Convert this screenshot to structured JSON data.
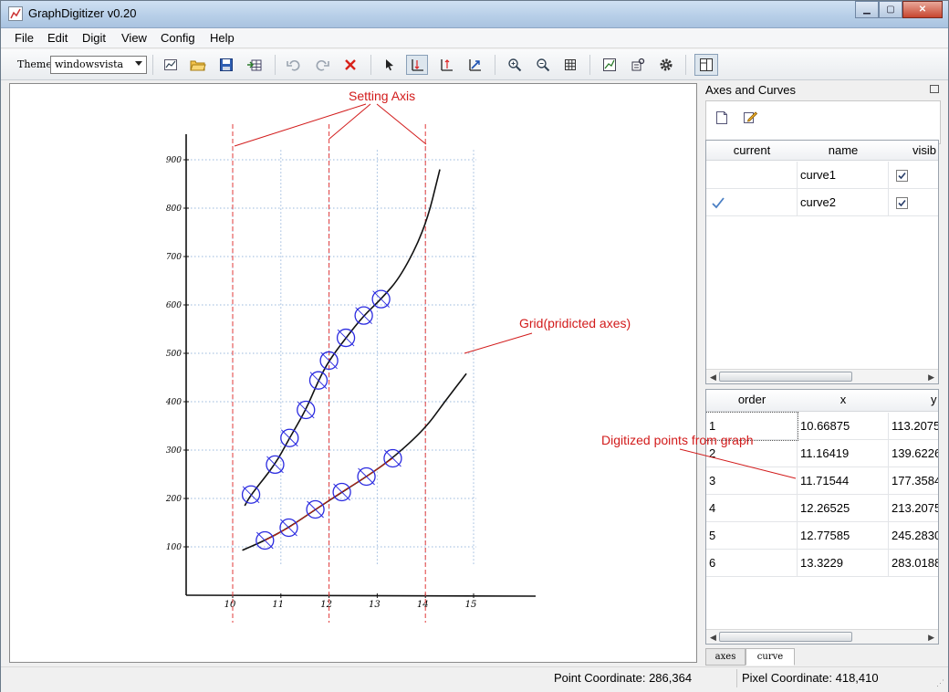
{
  "window": {
    "title": "GraphDigitizer v0.20",
    "minimize_icon": "minimize-icon",
    "maximize_icon": "maximize-icon",
    "close_icon": "close-icon"
  },
  "menu": {
    "items": [
      "File",
      "Edit",
      "Digit",
      "View",
      "Config",
      "Help"
    ]
  },
  "toolbar": {
    "theme_label": "Theme",
    "theme_value": "windowsvista",
    "icons": [
      "new-graph-icon",
      "open-folder-icon",
      "save-disk-icon",
      "export-table-icon",
      "undo-icon",
      "redo-icon",
      "delete-icon",
      "select-pointer-icon",
      "set-x-axis-icon",
      "set-y-axis-icon",
      "set-axes-icon",
      "zoom-in-icon",
      "zoom-out-icon",
      "grid-icon",
      "fit-graph-icon",
      "properties-icon",
      "settings-gear-icon",
      "dock-layout-icon"
    ],
    "active": [
      "set-x-axis-icon",
      "dock-layout-icon"
    ]
  },
  "plot": {
    "x_ticks": [
      "10",
      "11",
      "12",
      "13",
      "14",
      "15"
    ],
    "y_ticks": [
      "100",
      "200",
      "300",
      "400",
      "500",
      "600",
      "700",
      "800",
      "900"
    ],
    "annotations": {
      "setting_axis": "Setting Axis",
      "grid": "Grid(pridicted axes)",
      "digitized": "Digitized points from graph"
    }
  },
  "chart_data": {
    "type": "scatter",
    "xlim": [
      9,
      16
    ],
    "ylim": [
      0,
      950
    ],
    "grid": true,
    "series": [
      {
        "values": [
          [
            10.38,
            208
          ],
          [
            10.88,
            270
          ],
          [
            11.18,
            325
          ],
          [
            11.52,
            383
          ],
          [
            11.78,
            444
          ],
          [
            12.0,
            485
          ],
          [
            12.35,
            532
          ],
          [
            12.72,
            578
          ],
          [
            13.08,
            612
          ]
        ]
      },
      {
        "values": [
          [
            10.66875,
            113.2075
          ],
          [
            11.16419,
            139.6226
          ],
          [
            11.71544,
            177.3584
          ],
          [
            12.26525,
            213.2075
          ],
          [
            12.77585,
            245.283
          ],
          [
            13.3229,
            283.0188
          ]
        ]
      }
    ]
  },
  "dock": {
    "title": "Axes and Curves",
    "panel_icons": [
      "new-curve-icon",
      "edit-curve-icon"
    ],
    "curves_table": {
      "headers": [
        "current",
        "name",
        "visib"
      ],
      "rows": [
        {
          "current": "",
          "name": "curve1",
          "visible": true
        },
        {
          "current": "check",
          "name": "curve2",
          "visible": true
        }
      ]
    },
    "points_table": {
      "headers": [
        "order",
        "x",
        "y"
      ],
      "rows": [
        [
          "1",
          "10.66875",
          "113.2075"
        ],
        [
          "2",
          "11.16419",
          "139.6226"
        ],
        [
          "3",
          "11.71544",
          "177.3584"
        ],
        [
          "4",
          "12.26525",
          "213.2075"
        ],
        [
          "5",
          "12.77585",
          "245.2830"
        ],
        [
          "6",
          "13.3229",
          "283.0188"
        ]
      ]
    },
    "tabs": [
      "axes",
      "curve"
    ],
    "active_tab": "curve"
  },
  "status": {
    "point_coordinate": "Point Coordinate: 286,364",
    "pixel_coordinate": "Pixel Coordinate: 418,410"
  },
  "colors": {
    "annotation": "#d21b1b",
    "marker": "#2a2ae0",
    "grid": "#9ab8dd",
    "axis_guides": "#e23a3a"
  }
}
